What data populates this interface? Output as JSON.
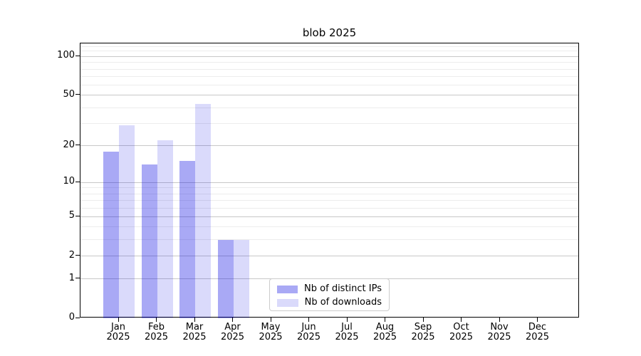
{
  "figure": {
    "title": "blob 2025"
  },
  "chart_data": {
    "type": "bar",
    "title": "blob 2025",
    "categories": [
      "Jan",
      "Feb",
      "Mar",
      "Apr",
      "May",
      "Jun",
      "Jul",
      "Aug",
      "Sep",
      "Oct",
      "Nov",
      "Dec"
    ],
    "year_label": "2025",
    "series": [
      {
        "name": "Nb of distinct IPs",
        "color": "rgba(10,10,225,0.35)",
        "solid_color": "#a9a9f4",
        "values": [
          18,
          14,
          15,
          3,
          0,
          0,
          0,
          0,
          0,
          0,
          0,
          0
        ]
      },
      {
        "name": "Nb of downloads",
        "color": "rgba(10,10,230,0.15)",
        "solid_color": "#dadafa",
        "values": [
          29,
          22,
          43,
          3,
          0,
          0,
          0,
          0,
          0,
          0,
          0,
          0
        ]
      }
    ],
    "yscale": "log1p",
    "ylim": [
      0,
      126.4
    ],
    "y_major_ticks": [
      100,
      50,
      20,
      10,
      5,
      2,
      1,
      0
    ],
    "y_minor_gridlines": [
      3,
      4,
      6,
      7,
      8,
      9,
      30,
      40,
      60,
      70,
      80,
      90,
      110,
      120
    ],
    "grid": true,
    "legend_position": "lower center"
  },
  "colors": {
    "major_grid": "#c8c8c8",
    "minor_grid": "#ececec",
    "axis": "#000000",
    "legend_border": "#cccccc",
    "background": "#ffffff"
  }
}
